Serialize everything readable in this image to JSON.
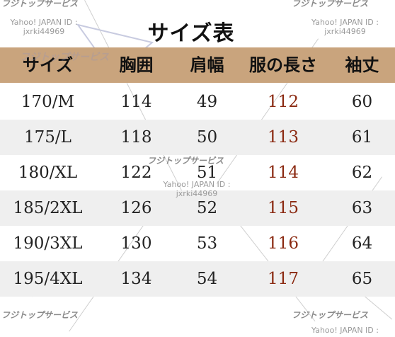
{
  "title": "サイズ表",
  "headers": [
    "サイズ",
    "胸囲",
    "肩幅",
    "服の長さ",
    "袖丈"
  ],
  "rows": [
    [
      "170/M",
      "114",
      "49",
      "112",
      "60"
    ],
    [
      "175/L",
      "118",
      "50",
      "113",
      "61"
    ],
    [
      "180/XL",
      "122",
      "51",
      "114",
      "62"
    ],
    [
      "185/2XL",
      "126",
      "52",
      "115",
      "63"
    ],
    [
      "190/3XL",
      "130",
      "53",
      "116",
      "64"
    ],
    [
      "195/4XL",
      "134",
      "54",
      "117",
      "65"
    ]
  ],
  "watermark": {
    "brand": "フジトップサービス",
    "yahoo_line": "Yahoo! JAPAN ID :",
    "user_id": "jxrki44969"
  },
  "colors": {
    "header_bg": "#c9a47d",
    "alt_row_bg": "#efefef",
    "length_text": "#8b2a12"
  }
}
